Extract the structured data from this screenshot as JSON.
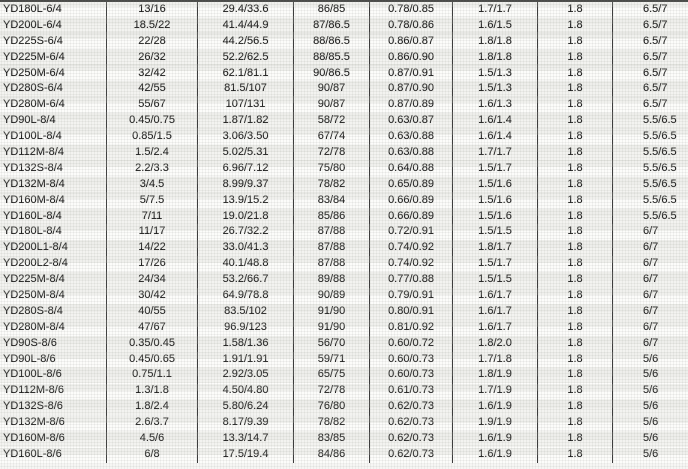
{
  "table": {
    "description_visible": false,
    "rows": [
      [
        "YD180L-6/4",
        "13/16",
        "29.4/33.6",
        "86/85",
        "0.78/0.85",
        "1.7/1.7",
        "1.8",
        "6.5/7"
      ],
      [
        "YD200L-6/4",
        "18.5/22",
        "41.4/44.9",
        "87/86.5",
        "0.78/0.86",
        "1.6/1.5",
        "1.8",
        "6.5/7"
      ],
      [
        "YD225S-6/4",
        "22/28",
        "44.2/56.5",
        "88/86.5",
        "0.86/0.87",
        "1.8/1.8",
        "1.8",
        "6.5/7"
      ],
      [
        "YD225M-6/4",
        "26/32",
        "52.2/62.5",
        "88/85.5",
        "0.86/0.90",
        "1.8/1.8",
        "1.8",
        "6.5/7"
      ],
      [
        "YD250M-6/4",
        "32/42",
        "62.1/81.1",
        "90/86.5",
        "0.87/0.91",
        "1.5/1.3",
        "1.8",
        "6.5/7"
      ],
      [
        "YD280S-6/4",
        "42/55",
        "81.5/107",
        "90/87",
        "0.87/0.90",
        "1.5/1.3",
        "1.8",
        "6.5/7"
      ],
      [
        "YD280M-6/4",
        "55/67",
        "107/131",
        "90/87",
        "0.87/0.89",
        "1.6/1.3",
        "1.8",
        "6.5/7"
      ],
      [
        "YD90L-8/4",
        "0.45/0.75",
        "1.87/1.82",
        "58/72",
        "0.63/0.87",
        "1.6/1.4",
        "1.8",
        "5.5/6.5"
      ],
      [
        "YD100L-8/4",
        "0.85/1.5",
        "3.06/3.50",
        "67/74",
        "0.63/0.88",
        "1.6/1.4",
        "1.8",
        "5.5/6.5"
      ],
      [
        "YD112M-8/4",
        "1.5/2.4",
        "5.02/5.31",
        "72/78",
        "0.63/0.88",
        "1.7/1.7",
        "1.8",
        "5.5/6.5"
      ],
      [
        "YD132S-8/4",
        "2.2/3.3",
        "6.96/7.12",
        "75/80",
        "0.64/0.88",
        "1.5/1.7",
        "1.8",
        "5.5/6.5"
      ],
      [
        "YD132M-8/4",
        "3/4.5",
        "8.99/9.37",
        "78/82",
        "0.65/0.89",
        "1.5/1.6",
        "1.8",
        "5.5/6.5"
      ],
      [
        "YD160M-8/4",
        "5/7.5",
        "13.9/15.2",
        "83/84",
        "0.66/0.89",
        "1.5/1.6",
        "1.8",
        "5.5/6.5"
      ],
      [
        "YD160L-8/4",
        "7/11",
        "19.0/21.8",
        "85/86",
        "0.66/0.89",
        "1.5/1.6",
        "1.8",
        "5.5/6.5"
      ],
      [
        "YD180L-8/4",
        "11/17",
        "26.7/32.2",
        "87/88",
        "0.72/0.91",
        "1.5/1.5",
        "1.8",
        "6/7"
      ],
      [
        "YD200L1-8/4",
        "14/22",
        "33.0/41.3",
        "87/88",
        "0.74/0.92",
        "1.8/1.7",
        "1.8",
        "6/7"
      ],
      [
        "YD200L2-8/4",
        "17/26",
        "40.1/48.8",
        "87/88",
        "0.74/0.92",
        "1.5/1.7",
        "1.8",
        "6/7"
      ],
      [
        "YD225M-8/4",
        "24/34",
        "53.2/66.7",
        "89/88",
        "0.77/0.88",
        "1.5/1.5",
        "1.8",
        "6/7"
      ],
      [
        "YD250M-8/4",
        "30/42",
        "64.9/78.8",
        "90/89",
        "0.79/0.91",
        "1.6/1.7",
        "1.8",
        "6/7"
      ],
      [
        "YD280S-8/4",
        "40/55",
        "83.5/102",
        "91/90",
        "0.80/0.91",
        "1.6/1.7",
        "1.8",
        "6/7"
      ],
      [
        "YD280M-8/4",
        "47/67",
        "96.9/123",
        "91/90",
        "0.81/0.92",
        "1.6/1.7",
        "1.8",
        "6/7"
      ],
      [
        "YD90S-8/6",
        "0.35/0.45",
        "1.58/1.36",
        "56/70",
        "0.60/0.72",
        "1.8/2.0",
        "1.8",
        "6/7"
      ],
      [
        "YD90L-8/6",
        "0.45/0.65",
        "1.91/1.91",
        "59/71",
        "0.60/0.73",
        "1.7/1.8",
        "1.8",
        "5/6"
      ],
      [
        "YD100L-8/6",
        "0.75/1.1",
        "2.92/3.05",
        "65/75",
        "0.60/0.73",
        "1.8/1.9",
        "1.8",
        "5/6"
      ],
      [
        "YD112M-8/6",
        "1.3/1.8",
        "4.50/4.80",
        "72/78",
        "0.61/0.73",
        "1.7/1.9",
        "1.8",
        "5/6"
      ],
      [
        "YD132S-8/6",
        "1.8/2.4",
        "5.80/6.24",
        "76/80",
        "0.62/0.73",
        "1.6/1.9",
        "1.8",
        "5/6"
      ],
      [
        "YD132M-8/6",
        "2.6/3.7",
        "8.17/9.39",
        "78/82",
        "0.62/0.73",
        "1.9/1.9",
        "1.8",
        "5/6"
      ],
      [
        "YD160M-8/6",
        "4.5/6",
        "13.3/14.7",
        "83/85",
        "0.62/0.73",
        "1.6/1.9",
        "1.8",
        "5/6"
      ],
      [
        "YD160L-8/6",
        "6/8",
        "17.5/19.4",
        "84/86",
        "0.62/0.73",
        "1.6/1.9",
        "1.8",
        "5/6"
      ]
    ]
  }
}
